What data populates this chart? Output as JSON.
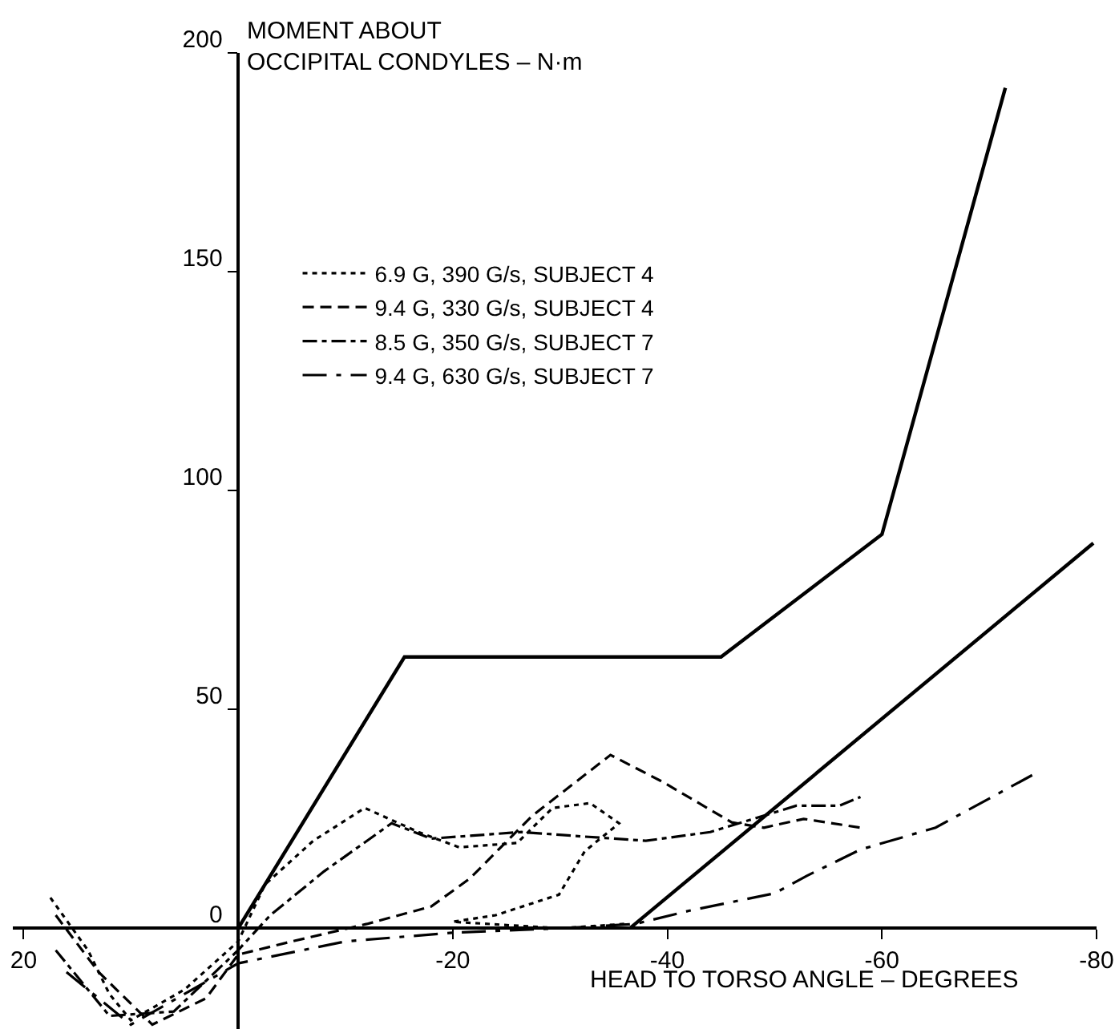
{
  "chart_data": {
    "type": "line",
    "ylabel": "MOMENT ABOUT\nOCCIPITAL CONDYLES – N·m",
    "xlabel": "HEAD TO TORSO ANGLE – DEGREES",
    "xlim": [
      21,
      -80
    ],
    "xticks": [
      20,
      -20,
      -40,
      -60,
      -80
    ],
    "ylim": [
      -23,
      200
    ],
    "yticks": [
      0,
      50,
      100,
      150,
      200
    ],
    "grid": false,
    "legend": "top left",
    "marker": "none",
    "series": [
      {
        "color": "#000000",
        "line_style": "solid",
        "x": [
          0,
          -15.5,
          -45,
          -60,
          -71.5
        ],
        "values": [
          0,
          62,
          62,
          90,
          192
        ]
      },
      {
        "color": "#000000",
        "line_style": "solid",
        "x": [
          -36.5,
          -79.7
        ],
        "values": [
          0,
          88
        ]
      },
      {
        "name": "6.9 G, 390 G/s, SUBJECT 4",
        "color": "#000000",
        "line_style": "dotted",
        "x": [
          17.5,
          14,
          12,
          10,
          5,
          0,
          -2.5,
          -7,
          -11.8,
          -16.8,
          -20.6,
          -26,
          -29.3,
          -32.8,
          -35.5,
          -32.3,
          -29.9,
          -24,
          -20,
          -30,
          -36
        ],
        "values": [
          7,
          -5,
          -15,
          -21,
          -14,
          -3,
          10,
          20,
          27.5,
          22,
          18.5,
          19.5,
          27.5,
          28.6,
          24,
          17.6,
          7.7,
          3,
          1.5,
          0,
          1
        ]
      },
      {
        "name": "9.4 G, 330 G/s, SUBJECT 4",
        "color": "#000000",
        "line_style": "dashed",
        "x": [
          17,
          13,
          8,
          3,
          0,
          -5,
          -12,
          -18,
          -21.6,
          -27.4,
          -34.7,
          -39.6,
          -46,
          -49,
          -52.7,
          -58
        ],
        "values": [
          3,
          -10,
          -22,
          -16,
          -6,
          -3,
          1,
          5,
          11.4,
          25.7,
          39.6,
          33.4,
          24.2,
          23,
          25,
          23
        ]
      },
      {
        "name": "8.5 G, 350 G/s, SUBJECT 7",
        "color": "#000000",
        "line_style": "dashdot",
        "x": [
          17,
          12,
          6,
          0,
          -3,
          -8,
          -14.3,
          -18,
          -26.4,
          -32,
          -38,
          -44,
          -52,
          -56,
          -58
        ],
        "values": [
          -5,
          -20,
          -19,
          -5,
          3,
          13,
          24,
          20.5,
          22,
          21,
          20,
          22,
          28,
          28,
          30
        ]
      },
      {
        "name": "9.4 G, 630 G/s, SUBJECT 7",
        "color": "#000000",
        "line_style": "longdashdot",
        "x": [
          16,
          10,
          0,
          -10,
          -20,
          -30,
          -37,
          -42,
          -50,
          -53,
          -58,
          -65,
          -74
        ],
        "values": [
          -10,
          -22,
          -8,
          -3,
          -1,
          0,
          1,
          4,
          8,
          12,
          18,
          23,
          35
        ]
      }
    ]
  }
}
